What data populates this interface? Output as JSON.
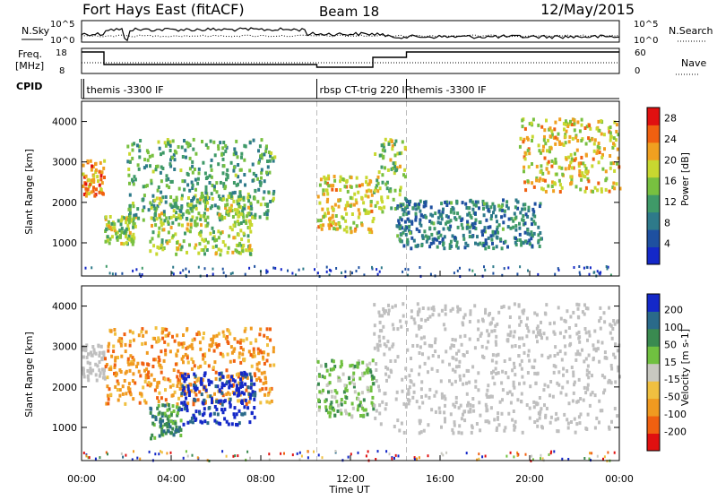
{
  "header": {
    "site": "Fort Hays East (fitACF)",
    "beam": "Beam 18",
    "date": "12/May/2015"
  },
  "top_labels": {
    "nsky": "N.Sky",
    "nsearch": "N.Search",
    "freq_line1": "Freq.",
    "freq_line2": "[MHz]",
    "nave": "Nave",
    "cpid": "CPID"
  },
  "top_ticks": {
    "nsky_hi": "10^5",
    "nsky_lo": "10^0",
    "nsearch_hi": "10^5",
    "nsearch_lo": "10^0",
    "freq_hi": "18",
    "freq_lo": "8",
    "nave_hi": "60",
    "nave_lo": "0"
  },
  "cpid_labels": [
    {
      "text": "themis -3300 IF",
      "start_hour": 0.1
    },
    {
      "text": "rbsp CT-trig 220 IF",
      "start_hour": 10.5
    },
    {
      "text": "themis -3300 IF",
      "start_hour": 14.5
    }
  ],
  "colors": {
    "power_scale": [
      "#1428c8",
      "#1e50a0",
      "#2e7a8a",
      "#3f9a68",
      "#78c040",
      "#c8d830",
      "#f0a020",
      "#f06010",
      "#e01010"
    ],
    "velocity_scale": [
      "#e01010",
      "#f06010",
      "#f09a20",
      "#f0c040",
      "#c8c8c0",
      "#70c040",
      "#3a8a50",
      "#2a6a8a",
      "#1428c8"
    ],
    "ground_scatter": "#bfbfbf"
  },
  "chart_data": [
    {
      "type": "heatmap",
      "name": "power",
      "xlabel": "Time UT",
      "ylabel": "Slant Range [km]",
      "xlim": [
        0,
        24
      ],
      "ylim": [
        180,
        4500
      ],
      "xticks": [
        "00:00",
        "04:00",
        "08:00",
        "12:00",
        "16:00",
        "20:00",
        "00:00"
      ],
      "yticks": [
        1000,
        2000,
        3000,
        4000
      ],
      "colorbar": {
        "label": "Power [dB]",
        "ticks": [
          4,
          8,
          12,
          16,
          20,
          24,
          28
        ],
        "range": [
          0,
          30
        ]
      },
      "features": [
        {
          "hour_start": 0.0,
          "hour_end": 1.0,
          "range_km_start": 2200,
          "range_km_end": 3100,
          "level": 24
        },
        {
          "hour_start": 1.0,
          "hour_end": 2.4,
          "range_km_start": 1000,
          "range_km_end": 1700,
          "level": 16
        },
        {
          "hour_start": 2.0,
          "hour_end": 8.6,
          "range_km_start": 1600,
          "range_km_end": 3600,
          "level": 12
        },
        {
          "hour_start": 3.0,
          "hour_end": 7.6,
          "range_km_start": 750,
          "range_km_end": 2200,
          "level": 16
        },
        {
          "hour_start": 10.5,
          "hour_end": 13.0,
          "range_km_start": 1300,
          "range_km_end": 2700,
          "level": 20
        },
        {
          "hour_start": 13.0,
          "hour_end": 14.4,
          "range_km_start": 1800,
          "range_km_end": 3600,
          "level": 16
        },
        {
          "hour_start": 14.0,
          "hour_end": 20.5,
          "range_km_start": 900,
          "range_km_end": 2100,
          "level": 8
        },
        {
          "hour_start": 19.5,
          "hour_end": 24.0,
          "range_km_start": 2300,
          "range_km_end": 4100,
          "level": 20
        }
      ]
    },
    {
      "type": "heatmap",
      "name": "velocity",
      "xlabel": "Time UT",
      "ylabel": "Slant Range [km]",
      "xlim": [
        0,
        24
      ],
      "ylim": [
        180,
        4500
      ],
      "xticks": [
        "00:00",
        "04:00",
        "08:00",
        "12:00",
        "16:00",
        "20:00",
        "00:00"
      ],
      "yticks": [
        1000,
        2000,
        3000,
        4000
      ],
      "colorbar": {
        "label": "Velocity [m s-1]",
        "ticks": [
          -200,
          -100,
          -50,
          -15,
          15,
          50,
          100,
          200
        ]
      },
      "features": [
        {
          "hour_start": 0.0,
          "hour_end": 1.0,
          "range_km_start": 2200,
          "range_km_end": 3100,
          "category": "ground"
        },
        {
          "hour_start": 1.0,
          "hour_end": 8.6,
          "range_km_start": 1600,
          "range_km_end": 3500,
          "category": "negative"
        },
        {
          "hour_start": 4.4,
          "hour_end": 7.7,
          "range_km_start": 1100,
          "range_km_end": 2400,
          "category": "positive-high"
        },
        {
          "hour_start": 3.0,
          "hour_end": 4.4,
          "range_km_start": 750,
          "range_km_end": 1600,
          "category": "positive"
        },
        {
          "hour_start": 10.5,
          "hour_end": 13.0,
          "range_km_start": 1300,
          "range_km_end": 2700,
          "category": "positive-low"
        },
        {
          "hour_start": 13.0,
          "hour_end": 24.0,
          "range_km_start": 900,
          "range_km_end": 4100,
          "category": "ground"
        }
      ]
    }
  ]
}
